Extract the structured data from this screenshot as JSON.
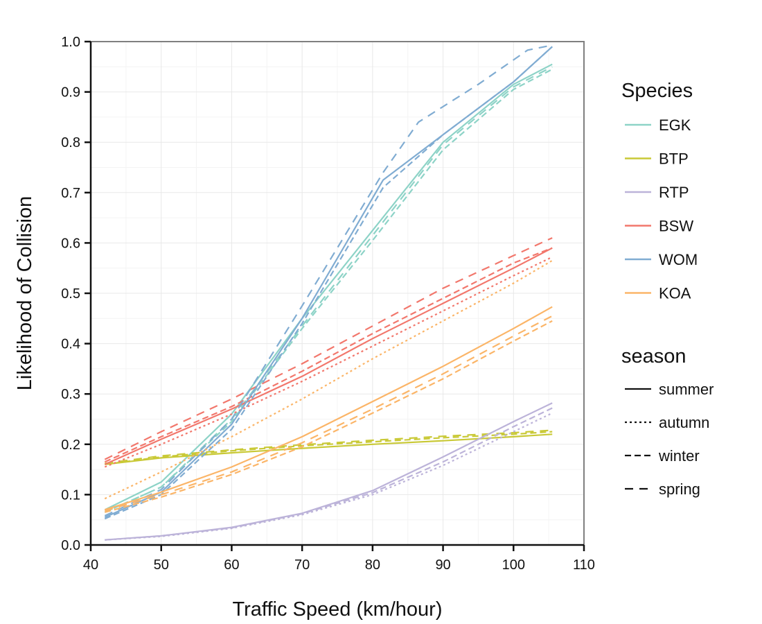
{
  "chart_data": {
    "type": "line",
    "title": "",
    "xlabel": "Traffic Speed (km/hour)",
    "ylabel": "Likelihood of Collision",
    "xlim": [
      40,
      110
    ],
    "ylim": [
      0.0,
      1.0
    ],
    "x_ticks": [
      "40",
      "50",
      "60",
      "70",
      "80",
      "90",
      "100",
      "110"
    ],
    "y_ticks": [
      "0.0",
      "0.1",
      "0.2",
      "0.3",
      "0.4",
      "0.5",
      "0.6",
      "0.7",
      "0.8",
      "0.9",
      "1.0"
    ],
    "grid": true,
    "legend_placement": "right",
    "species_legend": {
      "title": "Species",
      "items": [
        {
          "name": "EGK",
          "color": "#8dd3c7"
        },
        {
          "name": "BTP",
          "color": "#c9c936"
        },
        {
          "name": "RTP",
          "color": "#bcb3d9"
        },
        {
          "name": "BSW",
          "color": "#f2776c"
        },
        {
          "name": "WOM",
          "color": "#80acd2"
        },
        {
          "name": "KOA",
          "color": "#fbb568"
        }
      ]
    },
    "season_legend": {
      "title": "season",
      "items": [
        {
          "name": "summer",
          "dash": "solid"
        },
        {
          "name": "autumn",
          "dash": "dotted"
        },
        {
          "name": "winter",
          "dash": "dashed"
        },
        {
          "name": "spring",
          "dash": "longdash"
        }
      ]
    },
    "series": [
      {
        "species": "EGK",
        "season": "summer",
        "x": [
          42,
          50,
          60,
          70,
          80,
          90,
          100,
          105.5
        ],
        "y": [
          0.07,
          0.125,
          0.26,
          0.45,
          0.625,
          0.8,
          0.915,
          0.955
        ]
      },
      {
        "species": "EGK",
        "season": "winter",
        "x": [
          42,
          50,
          60,
          70,
          80,
          90,
          100,
          105.5
        ],
        "y": [
          0.065,
          0.115,
          0.245,
          0.43,
          0.605,
          0.785,
          0.905,
          0.945
        ]
      },
      {
        "species": "EGK",
        "season": "spring",
        "x": [
          42,
          50,
          60,
          70,
          80,
          90,
          100,
          105.5
        ],
        "y": [
          0.065,
          0.115,
          0.25,
          0.435,
          0.615,
          0.795,
          0.91,
          0.95
        ]
      },
      {
        "species": "BTP",
        "season": "summer",
        "x": [
          42,
          50,
          60,
          70,
          80,
          90,
          100,
          105.5
        ],
        "y": [
          0.16,
          0.173,
          0.183,
          0.192,
          0.2,
          0.207,
          0.215,
          0.22
        ]
      },
      {
        "species": "BTP",
        "season": "winter",
        "x": [
          42,
          50,
          60,
          70,
          80,
          90,
          100,
          105.5
        ],
        "y": [
          0.16,
          0.175,
          0.187,
          0.197,
          0.205,
          0.213,
          0.22,
          0.225
        ]
      },
      {
        "species": "BTP",
        "season": "spring",
        "x": [
          42,
          50,
          60,
          70,
          80,
          90,
          100,
          105.5
        ],
        "y": [
          0.162,
          0.177,
          0.189,
          0.199,
          0.208,
          0.216,
          0.223,
          0.228
        ]
      },
      {
        "species": "RTP",
        "season": "summer",
        "x": [
          42,
          50,
          60,
          70,
          80,
          90,
          100,
          105.5
        ],
        "y": [
          0.01,
          0.018,
          0.035,
          0.063,
          0.108,
          0.175,
          0.245,
          0.282
        ]
      },
      {
        "species": "RTP",
        "season": "autumn",
        "x": [
          42,
          50,
          60,
          70,
          80,
          90,
          100,
          105.5
        ],
        "y": [
          0.01,
          0.017,
          0.033,
          0.06,
          0.1,
          0.158,
          0.225,
          0.262
        ]
      },
      {
        "species": "RTP",
        "season": "winter",
        "x": [
          42,
          50,
          60,
          70,
          80,
          90,
          100,
          105.5
        ],
        "y": [
          0.01,
          0.018,
          0.034,
          0.062,
          0.104,
          0.165,
          0.235,
          0.272
        ]
      },
      {
        "species": "BSW",
        "season": "summer",
        "x": [
          42,
          50,
          60,
          70,
          80,
          90,
          100,
          105.5
        ],
        "y": [
          0.16,
          0.21,
          0.27,
          0.335,
          0.41,
          0.48,
          0.55,
          0.59
        ]
      },
      {
        "species": "BSW",
        "season": "autumn",
        "x": [
          42,
          50,
          60,
          70,
          80,
          90,
          100,
          105.5
        ],
        "y": [
          0.155,
          0.2,
          0.26,
          0.325,
          0.395,
          0.465,
          0.535,
          0.572
        ]
      },
      {
        "species": "BSW",
        "season": "winter",
        "x": [
          42,
          50,
          60,
          70,
          80,
          90,
          100,
          105.5
        ],
        "y": [
          0.165,
          0.215,
          0.275,
          0.345,
          0.42,
          0.49,
          0.56,
          0.59
        ]
      },
      {
        "species": "BSW",
        "season": "spring",
        "x": [
          42,
          50,
          60,
          70,
          80,
          90,
          100,
          105.5
        ],
        "y": [
          0.17,
          0.225,
          0.29,
          0.36,
          0.435,
          0.51,
          0.575,
          0.61
        ]
      },
      {
        "species": "WOM",
        "season": "summer",
        "x": [
          42,
          50,
          60,
          70,
          81.5,
          90,
          100,
          105.5
        ],
        "y": [
          0.055,
          0.105,
          0.24,
          0.45,
          0.725,
          0.815,
          0.92,
          0.99
        ]
      },
      {
        "species": "WOM",
        "season": "winter",
        "x": [
          42,
          50,
          60,
          70,
          81.5,
          90,
          100,
          105.5
        ],
        "y": [
          0.052,
          0.1,
          0.23,
          0.44,
          0.71,
          0.815,
          0.92,
          0.99
        ]
      },
      {
        "species": "WOM",
        "season": "spring",
        "x": [
          42,
          50,
          60,
          70,
          81.5,
          86.5,
          95,
          102,
          105.5
        ],
        "y": [
          0.058,
          0.11,
          0.25,
          0.475,
          0.74,
          0.84,
          0.915,
          0.983,
          0.993
        ]
      },
      {
        "species": "KOA",
        "season": "summer",
        "x": [
          42,
          50,
          60,
          70,
          80,
          90,
          100,
          105.5
        ],
        "y": [
          0.07,
          0.105,
          0.155,
          0.215,
          0.285,
          0.355,
          0.43,
          0.473
        ]
      },
      {
        "species": "KOA",
        "season": "autumn",
        "x": [
          42,
          50,
          60,
          70,
          80,
          90,
          100,
          105.5
        ],
        "y": [
          0.092,
          0.145,
          0.215,
          0.29,
          0.37,
          0.445,
          0.52,
          0.565
        ]
      },
      {
        "species": "KOA",
        "season": "winter",
        "x": [
          42,
          50,
          60,
          70,
          80,
          90,
          100,
          105.5
        ],
        "y": [
          0.065,
          0.095,
          0.14,
          0.195,
          0.262,
          0.33,
          0.405,
          0.445
        ]
      },
      {
        "species": "KOA",
        "season": "spring",
        "x": [
          42,
          50,
          60,
          70,
          80,
          90,
          100,
          105.5
        ],
        "y": [
          0.068,
          0.1,
          0.145,
          0.203,
          0.27,
          0.34,
          0.415,
          0.455
        ]
      }
    ]
  }
}
